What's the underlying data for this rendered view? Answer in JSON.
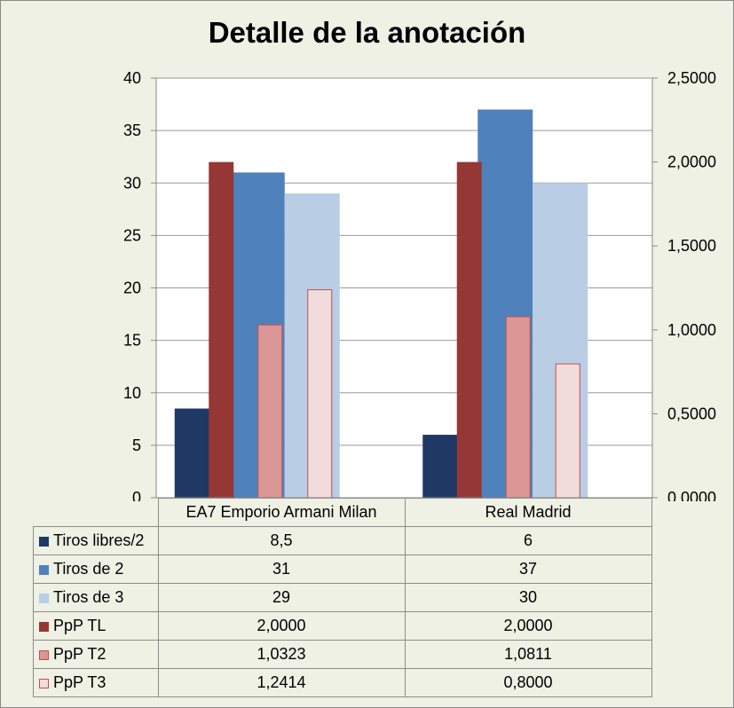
{
  "chart_data": {
    "type": "bar",
    "title": "Detalle de la anotación",
    "categories": [
      "EA7 Emporio Armani Milan",
      "Real Madrid"
    ],
    "y_left": {
      "range": [
        0,
        40
      ],
      "ticks": [
        "0",
        "5",
        "10",
        "15",
        "20",
        "25",
        "30",
        "35",
        "40"
      ]
    },
    "y_right": {
      "range": [
        0,
        2.5
      ],
      "ticks": [
        "0,0000",
        "0,5000",
        "1,0000",
        "1,5000",
        "2,0000",
        "2,5000"
      ]
    },
    "grid": true,
    "legend": "data-table",
    "series": [
      {
        "name": "Tiros libres/2",
        "axis": "left",
        "values": [
          8.5,
          6
        ],
        "labels": [
          "8,5",
          "6"
        ],
        "color": "#1f3864",
        "edge": "#1f3864"
      },
      {
        "name": "Tiros de 2",
        "axis": "left",
        "values": [
          31,
          37
        ],
        "labels": [
          "31",
          "37"
        ],
        "color": "#4f81bd",
        "edge": "#4f81bd"
      },
      {
        "name": "Tiros de 3",
        "axis": "left",
        "values": [
          29,
          30
        ],
        "labels": [
          "29",
          "30"
        ],
        "color": "#b9cde5",
        "edge": "#b9cde5"
      },
      {
        "name": "PpP TL",
        "axis": "right",
        "values": [
          2.0,
          2.0
        ],
        "labels": [
          "2,0000",
          "2,0000"
        ],
        "color": "#953735",
        "edge": "#953735"
      },
      {
        "name": "PpP T2",
        "axis": "right",
        "values": [
          1.0323,
          1.0811
        ],
        "labels": [
          "1,0323",
          "1,0811"
        ],
        "color": "#da9694",
        "edge": "#c0504d"
      },
      {
        "name": "PpP T3",
        "axis": "right",
        "values": [
          1.2414,
          0.8
        ],
        "labels": [
          "1,2414",
          "0,8000"
        ],
        "color": "#f2dcdb",
        "edge": "#c0504d"
      }
    ]
  }
}
